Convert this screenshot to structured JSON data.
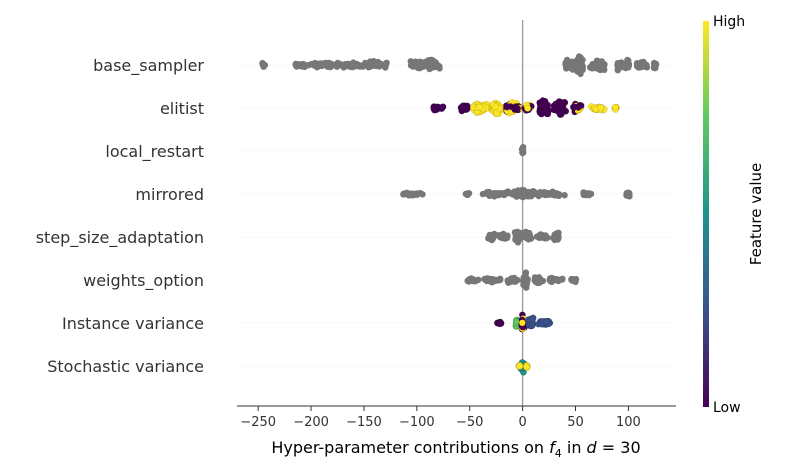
{
  "chart_data": {
    "type": "scatter",
    "subtype": "beeswarm",
    "xlabel_prefix": "Hyper-parameter contributions on ",
    "xlabel_f": "f",
    "xlabel_f_sub": "4",
    "xlabel_mid": " in ",
    "xlabel_d": "d",
    "xlabel_eq": " = 30",
    "xlim": [
      -270,
      145
    ],
    "xticks": [
      {
        "value": -250,
        "label": "−250"
      },
      {
        "value": -200,
        "label": "−200"
      },
      {
        "value": -150,
        "label": "−150"
      },
      {
        "value": -100,
        "label": "−100"
      },
      {
        "value": -50,
        "label": "−50"
      },
      {
        "value": 0,
        "label": "0"
      },
      {
        "value": 50,
        "label": "50"
      },
      {
        "value": 100,
        "label": "100"
      }
    ],
    "features": [
      {
        "name": "base_sampler",
        "color_mode": "gray",
        "clusters": [
          [
            -245,
            3,
            3
          ],
          [
            -210,
            12,
            2
          ],
          [
            -190,
            25,
            3
          ],
          [
            -160,
            20,
            3
          ],
          [
            -140,
            15,
            4
          ],
          [
            -95,
            18,
            6
          ],
          [
            -85,
            8,
            7
          ],
          [
            42,
            2,
            7
          ],
          [
            52,
            8,
            12
          ],
          [
            72,
            10,
            7
          ],
          [
            95,
            10,
            6
          ],
          [
            112,
            8,
            5
          ],
          [
            125,
            2,
            4
          ]
        ]
      },
      {
        "name": "elitist",
        "color_mode": "mixed",
        "clusters": [
          [
            -82,
            8,
            3,
            "low"
          ],
          [
            -55,
            6,
            4,
            "low"
          ],
          [
            -40,
            10,
            7,
            "high"
          ],
          [
            -25,
            8,
            8,
            "high"
          ],
          [
            -12,
            6,
            7,
            "mix"
          ],
          [
            -5,
            4,
            5,
            "mix"
          ],
          [
            5,
            4,
            5,
            "mix"
          ],
          [
            20,
            6,
            9,
            "low"
          ],
          [
            35,
            8,
            9,
            "low"
          ],
          [
            52,
            6,
            6,
            "mix"
          ],
          [
            72,
            10,
            3,
            "high"
          ],
          [
            88,
            2,
            2,
            "high"
          ]
        ]
      },
      {
        "name": "local_restart",
        "color_mode": "gray",
        "clusters": [
          [
            0,
            1,
            5
          ]
        ]
      },
      {
        "name": "mirrored",
        "color_mode": "gray",
        "clusters": [
          [
            -105,
            14,
            2
          ],
          [
            -52,
            3,
            2
          ],
          [
            -25,
            18,
            3
          ],
          [
            -5,
            6,
            4
          ],
          [
            0,
            2,
            8
          ],
          [
            8,
            6,
            4
          ],
          [
            25,
            18,
            3
          ],
          [
            62,
            6,
            2
          ],
          [
            100,
            4,
            3
          ]
        ]
      },
      {
        "name": "step_size_adaptation",
        "color_mode": "gray",
        "clusters": [
          [
            -30,
            4,
            6
          ],
          [
            -18,
            8,
            4
          ],
          [
            -5,
            4,
            7
          ],
          [
            5,
            5,
            6
          ],
          [
            18,
            6,
            4
          ],
          [
            32,
            4,
            6
          ]
        ]
      },
      {
        "name": "weights_option",
        "color_mode": "gray",
        "clusters": [
          [
            -48,
            8,
            2
          ],
          [
            -28,
            10,
            3
          ],
          [
            -10,
            8,
            5
          ],
          [
            2,
            4,
            8
          ],
          [
            14,
            6,
            5
          ],
          [
            30,
            10,
            3
          ],
          [
            48,
            4,
            2
          ]
        ]
      },
      {
        "name": "Instance variance",
        "color_mode": "instance",
        "clusters": [
          [
            -22,
            3,
            2,
            "low"
          ],
          [
            -5,
            3,
            6,
            "green"
          ],
          [
            0,
            2,
            9,
            "mix"
          ],
          [
            8,
            4,
            6,
            "blue"
          ],
          [
            20,
            8,
            3,
            "blue"
          ]
        ]
      },
      {
        "name": "Stochastic variance",
        "color_mode": "stochastic",
        "clusters": [
          [
            0,
            3,
            7,
            "teal"
          ],
          [
            -3,
            1,
            2,
            "yellow"
          ],
          [
            4,
            1,
            2,
            "yellow"
          ]
        ]
      }
    ],
    "colorbar": {
      "label": "Feature value",
      "high": "High",
      "low": "Low",
      "colors": [
        "#440154",
        "#3b528b",
        "#21918c",
        "#5ec962",
        "#fde725"
      ]
    },
    "colors": {
      "gray": "#777777",
      "low": "#440154",
      "high": "#fde725",
      "blue": "#3b528b",
      "teal": "#21918c",
      "green": "#5ec962",
      "zero_line": "#999999",
      "gridline": "#e6e6e6"
    },
    "grid": true
  }
}
